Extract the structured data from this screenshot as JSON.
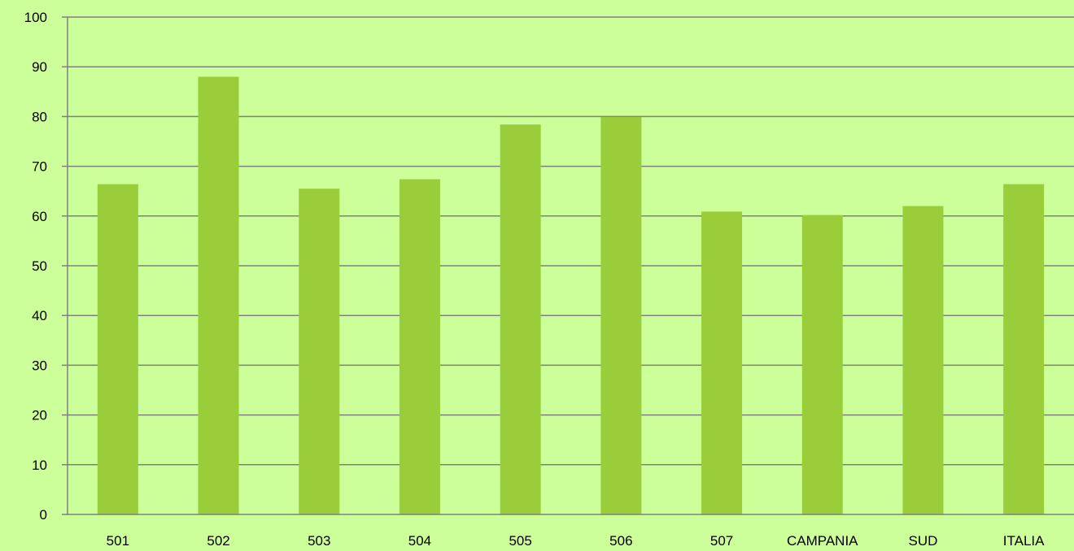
{
  "chart_data": {
    "type": "bar",
    "categories": [
      "501",
      "502",
      "503",
      "504",
      "505",
      "506",
      "507",
      "CAMPANIA",
      "SUD",
      "ITALIA"
    ],
    "series": [
      {
        "values": [
          66.4,
          88.0,
          65.5,
          67.4,
          78.4,
          79.9,
          60.9,
          60.2,
          62.0,
          66.4
        ],
        "color": "#9acd3a"
      }
    ],
    "ylim": [
      0,
      100
    ],
    "yticks": [
      "0",
      "10",
      "20",
      "30",
      "40",
      "50",
      "60",
      "70",
      "80",
      "90",
      "100"
    ],
    "title": "",
    "xlabel": "",
    "ylabel": "",
    "grid": true,
    "legend": "none"
  },
  "colors": {
    "background": "#ccff99",
    "bar": "#9acd3a",
    "gridline": "#7f7f7f",
    "axis": "#7f7f7f"
  }
}
